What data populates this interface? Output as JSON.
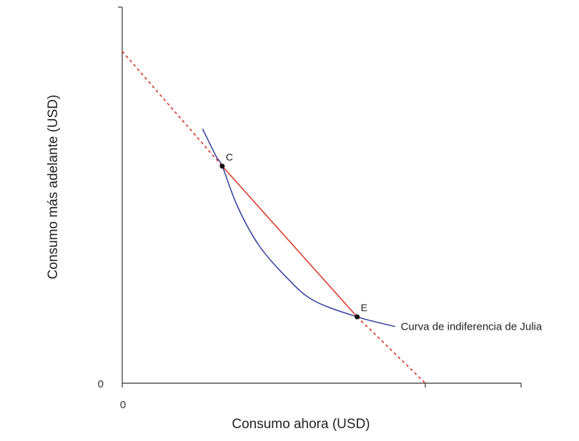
{
  "chart_data": {
    "type": "line",
    "xlabel": "Consumo ahora (USD)",
    "ylabel": "Consumo más adelante (USD)",
    "x_tick_labels": [
      "0"
    ],
    "y_tick_labels": [
      "0"
    ],
    "xlim": [
      0,
      10
    ],
    "ylim": [
      0,
      12
    ],
    "series": [
      {
        "name": "Curva de indiferencia de Julia",
        "color": "#2f3d9a",
        "style": "solid",
        "points": [
          [
            2.65,
            9.2
          ],
          [
            3.1,
            8.2
          ],
          [
            3.3,
            7.85
          ],
          [
            3.8,
            6.4
          ],
          [
            4.5,
            5.0
          ],
          [
            5.4,
            3.85
          ],
          [
            6.3,
            3.0
          ],
          [
            7.75,
            2.4
          ],
          [
            9.0,
            2.05
          ]
        ]
      },
      {
        "name": "",
        "color": "#d9301e",
        "style": "solid",
        "points": [
          [
            3.3,
            7.85
          ],
          [
            7.75,
            2.4
          ]
        ]
      },
      {
        "name": "",
        "color": "#d9301e",
        "style": "dashed",
        "points": [
          [
            0,
            12.0
          ],
          [
            3.3,
            7.85
          ]
        ]
      },
      {
        "name": "",
        "color": "#d9301e",
        "style": "dashed",
        "points": [
          [
            7.75,
            2.4
          ],
          [
            10.0,
            0
          ]
        ]
      }
    ],
    "points": [
      {
        "label": "C",
        "x": 3.3,
        "y": 7.85
      },
      {
        "label": "E",
        "x": 7.75,
        "y": 2.4
      }
    ],
    "annotations": [
      {
        "text": "Curva de indiferencia de Julia",
        "anchor_x": 9.0,
        "anchor_y": 2.05
      }
    ]
  }
}
